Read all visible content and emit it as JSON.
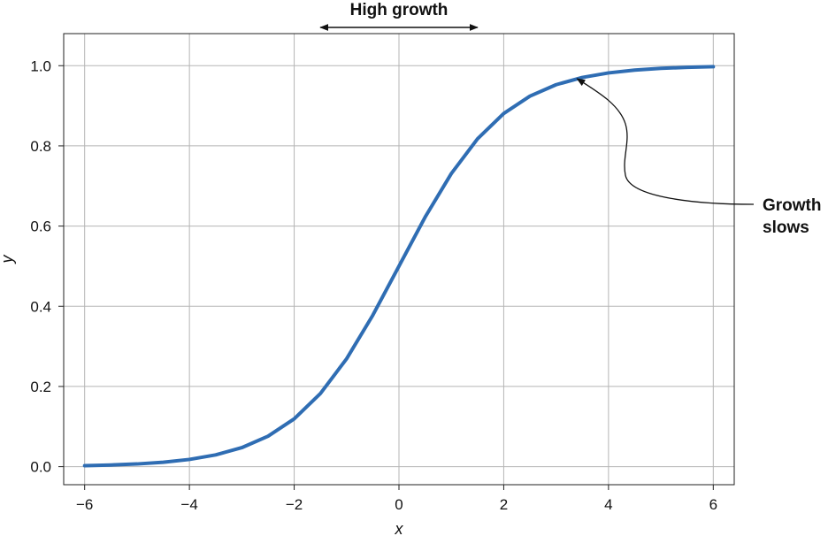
{
  "chart_data": {
    "type": "line",
    "title": "",
    "xlabel": "x",
    "ylabel": "y",
    "xlim": [
      -6.4,
      6.4
    ],
    "ylim": [
      -0.045,
      1.08
    ],
    "xticks": [
      -6,
      -4,
      -2,
      0,
      2,
      4,
      6
    ],
    "yticks": [
      0.0,
      0.2,
      0.4,
      0.6,
      0.8,
      1.0
    ],
    "xtick_labels": [
      "−6",
      "−4",
      "−2",
      "0",
      "2",
      "4",
      "6"
    ],
    "ytick_labels": [
      "0.0",
      "0.2",
      "0.4",
      "0.6",
      "0.8",
      "1.0"
    ],
    "grid": true,
    "series": [
      {
        "color": "#2f6db3",
        "x": [
          -6,
          -5.5,
          -5,
          -4.5,
          -4,
          -3.5,
          -3,
          -2.5,
          -2,
          -1.5,
          -1,
          -0.5,
          0,
          0.5,
          1,
          1.5,
          2,
          2.5,
          3,
          3.5,
          4,
          4.5,
          5,
          5.5,
          6
        ],
        "y": [
          0.0025,
          0.0041,
          0.0067,
          0.011,
          0.018,
          0.0293,
          0.0474,
          0.0759,
          0.1192,
          0.1824,
          0.2689,
          0.3775,
          0.5,
          0.6225,
          0.7311,
          0.8176,
          0.8808,
          0.9241,
          0.9526,
          0.9707,
          0.982,
          0.989,
          0.9933,
          0.9959,
          0.9975
        ]
      }
    ],
    "annotations": [
      {
        "id": "high-growth",
        "text_lines": [
          "High growth"
        ],
        "arrow_x_range": [
          -1.5,
          1.5
        ]
      },
      {
        "id": "growth-slows",
        "text_lines": [
          "Growth",
          "slows"
        ],
        "arrow_target": [
          3.4,
          0.9677
        ]
      }
    ]
  }
}
